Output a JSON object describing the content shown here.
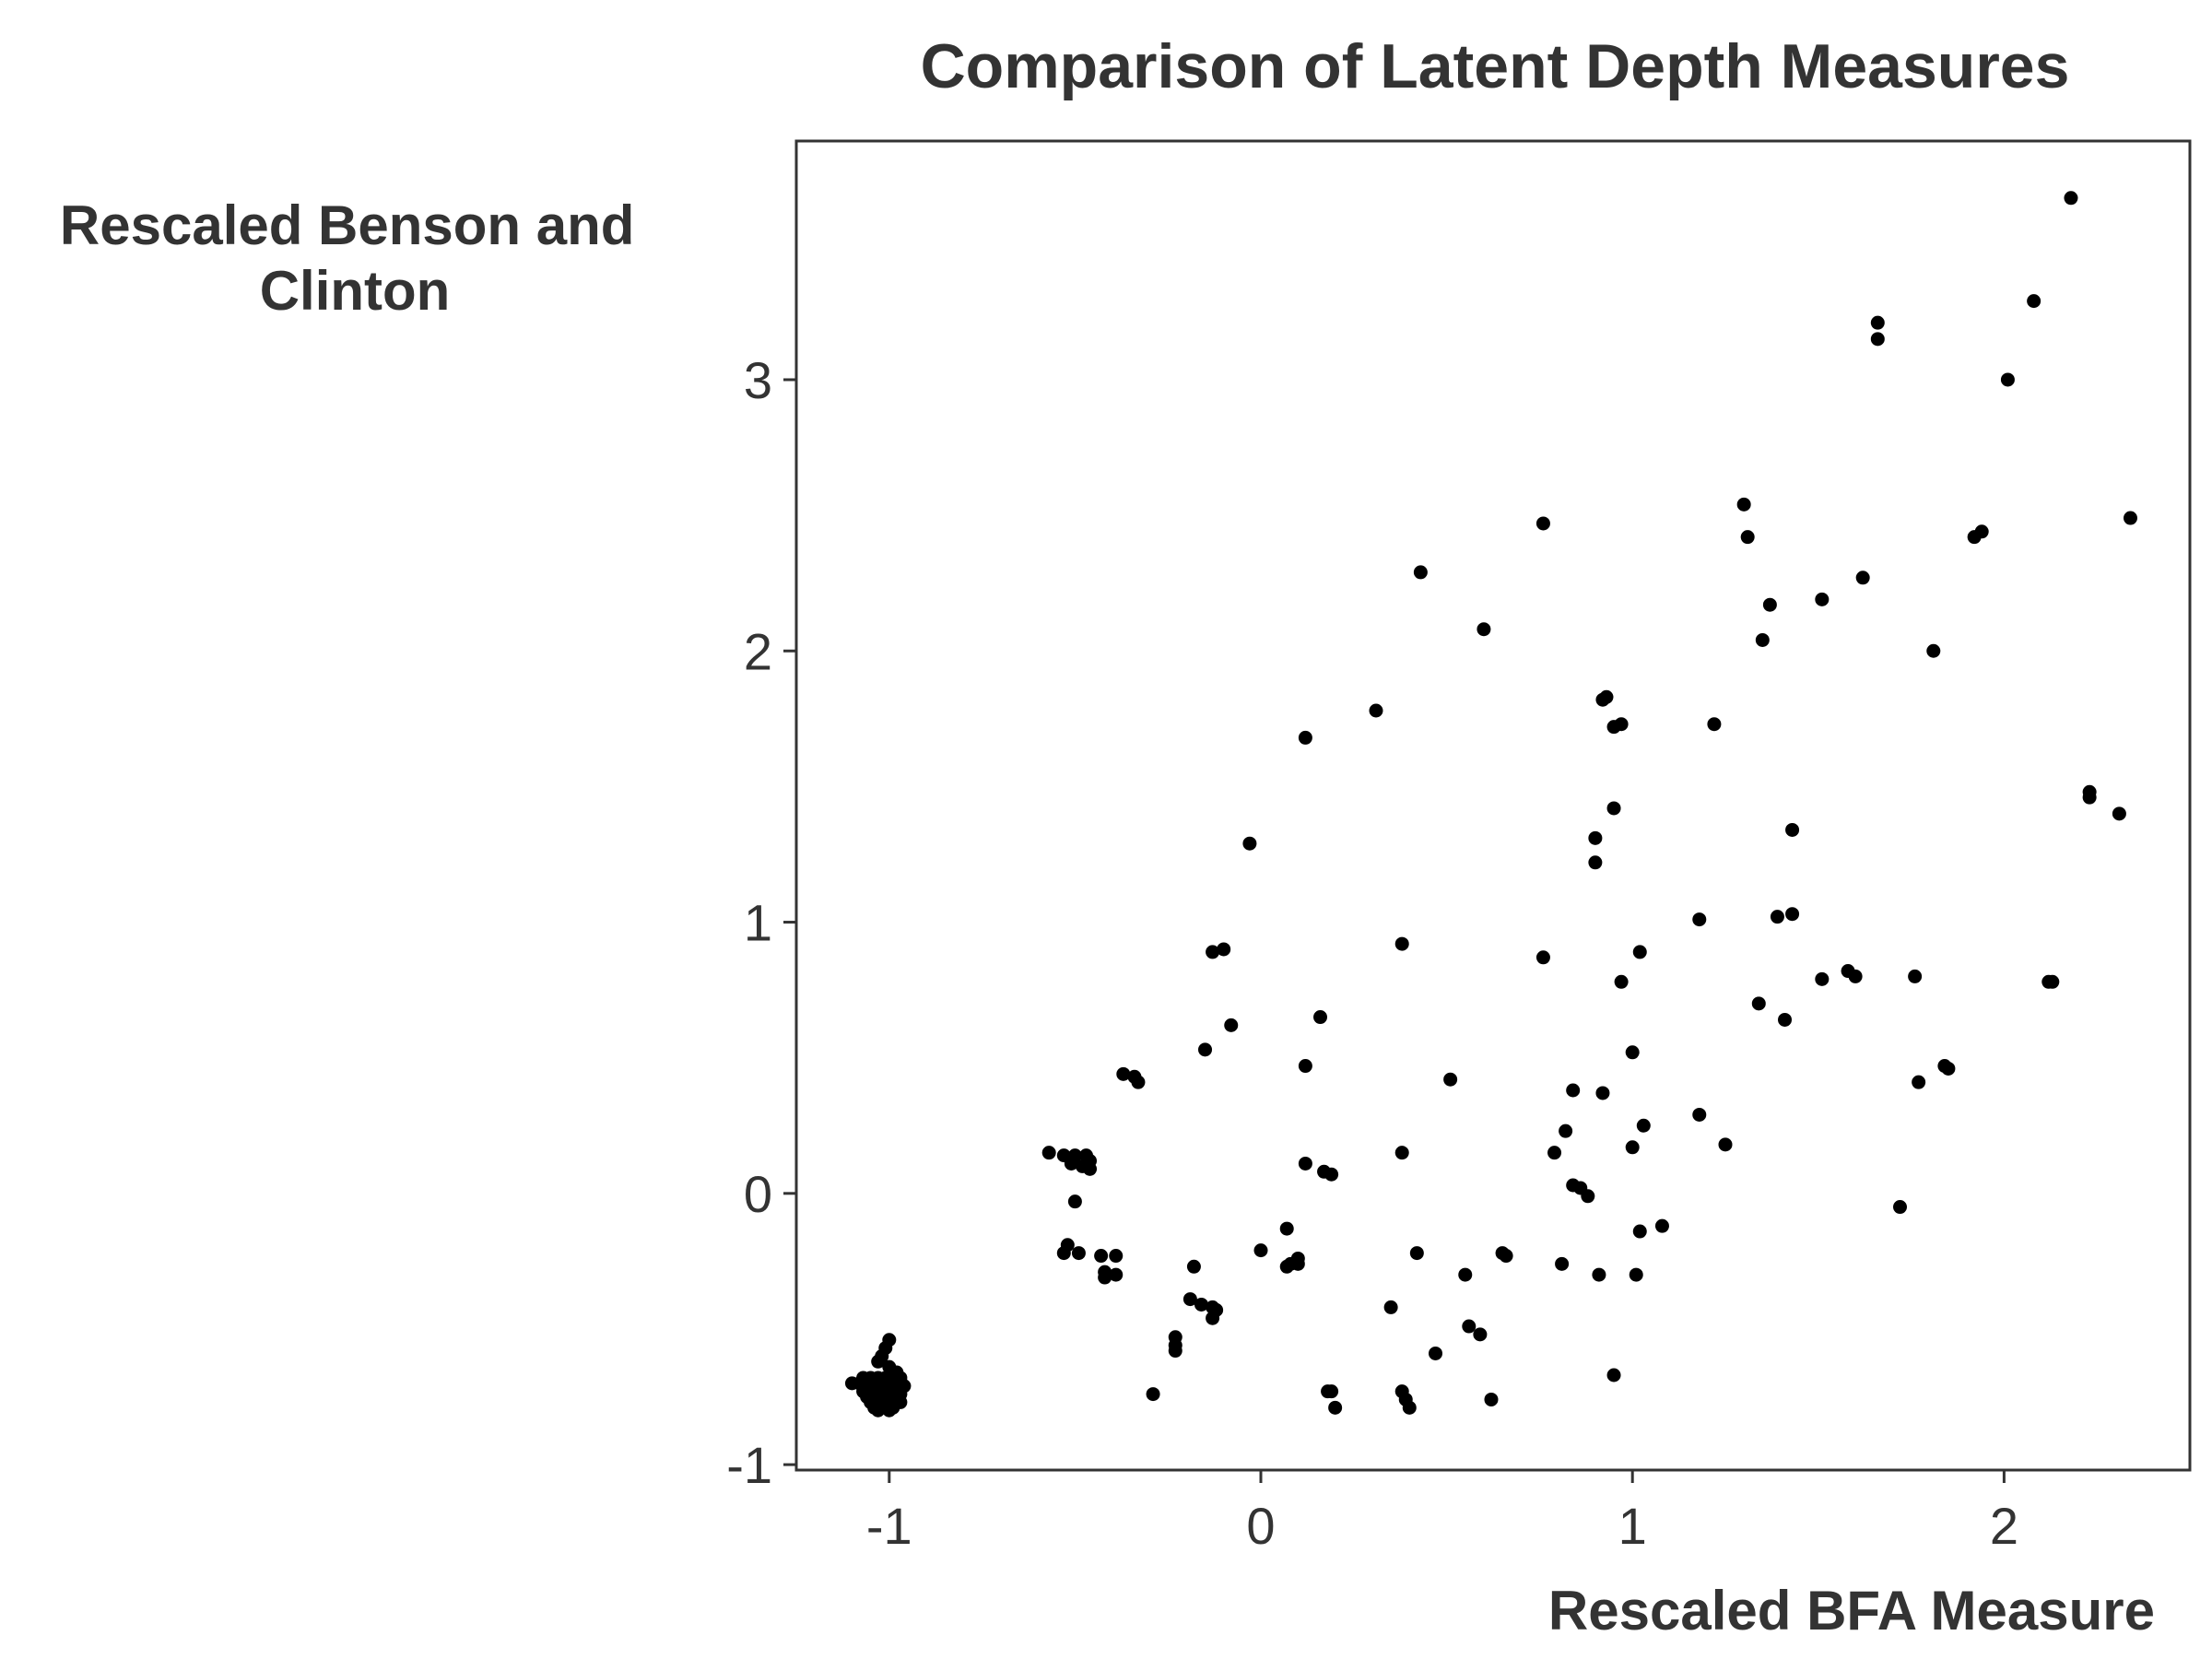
{
  "chart_data": {
    "type": "scatter",
    "title": "Comparison of Latent Depth Measures",
    "xlabel": "Rescaled BFA Measure",
    "ylabel_lines": [
      "Rescaled Benson and",
      "Clinton"
    ],
    "xlim": [
      -1.25,
      2.5
    ],
    "ylim": [
      -1.02,
      3.88
    ],
    "xticks": [
      -1,
      0,
      1,
      2
    ],
    "yticks": [
      -1,
      0,
      1,
      2,
      3
    ],
    "grid": false,
    "point_color": "#000000",
    "series": [
      {
        "points": [
          [
            2.18,
            3.67
          ],
          [
            2.08,
            3.29
          ],
          [
            1.66,
            3.21
          ],
          [
            1.66,
            3.15
          ],
          [
            2.01,
            3.0
          ],
          [
            1.3,
            2.54
          ],
          [
            1.31,
            2.42
          ],
          [
            2.34,
            2.49
          ],
          [
            1.92,
            2.42
          ],
          [
            1.94,
            2.44
          ],
          [
            0.76,
            2.47
          ],
          [
            0.43,
            2.29
          ],
          [
            1.62,
            2.27
          ],
          [
            1.51,
            2.19
          ],
          [
            1.37,
            2.17
          ],
          [
            0.6,
            2.08
          ],
          [
            1.35,
            2.04
          ],
          [
            1.81,
            2.0
          ],
          [
            0.93,
            1.83
          ],
          [
            0.92,
            1.82
          ],
          [
            0.31,
            1.78
          ],
          [
            0.97,
            1.73
          ],
          [
            0.95,
            1.72
          ],
          [
            1.22,
            1.73
          ],
          [
            0.12,
            1.68
          ],
          [
            2.23,
            1.48
          ],
          [
            2.23,
            1.46
          ],
          [
            2.31,
            1.4
          ],
          [
            0.95,
            1.42
          ],
          [
            1.43,
            1.34
          ],
          [
            0.9,
            1.31
          ],
          [
            -0.03,
            1.29
          ],
          [
            0.9,
            1.22
          ],
          [
            1.43,
            1.03
          ],
          [
            1.39,
            1.02
          ],
          [
            1.18,
            1.01
          ],
          [
            0.38,
            0.92
          ],
          [
            1.02,
            0.89
          ],
          [
            -0.1,
            0.9
          ],
          [
            -0.13,
            0.89
          ],
          [
            0.76,
            0.87
          ],
          [
            1.58,
            0.82
          ],
          [
            1.6,
            0.8
          ],
          [
            1.51,
            0.79
          ],
          [
            1.76,
            0.8
          ],
          [
            2.12,
            0.78
          ],
          [
            2.13,
            0.78
          ],
          [
            0.97,
            0.78
          ],
          [
            1.34,
            0.7
          ],
          [
            0.16,
            0.65
          ],
          [
            1.41,
            0.64
          ],
          [
            -0.08,
            0.62
          ],
          [
            -0.15,
            0.53
          ],
          [
            1.0,
            0.52
          ],
          [
            1.84,
            0.47
          ],
          [
            1.85,
            0.46
          ],
          [
            0.12,
            0.47
          ],
          [
            -0.37,
            0.44
          ],
          [
            -0.34,
            0.43
          ],
          [
            -0.33,
            0.41
          ],
          [
            1.77,
            0.41
          ],
          [
            0.51,
            0.42
          ],
          [
            0.84,
            0.38
          ],
          [
            0.92,
            0.37
          ],
          [
            1.18,
            0.29
          ],
          [
            1.03,
            0.25
          ],
          [
            0.82,
            0.23
          ],
          [
            1.25,
            0.18
          ],
          [
            1.0,
            0.17
          ],
          [
            0.79,
            0.15
          ],
          [
            0.38,
            0.15
          ],
          [
            -0.57,
            0.15
          ],
          [
            -0.53,
            0.14
          ],
          [
            -0.5,
            0.14
          ],
          [
            -0.47,
            0.14
          ],
          [
            -0.46,
            0.12
          ],
          [
            -0.51,
            0.11
          ],
          [
            -0.48,
            0.1
          ],
          [
            -0.46,
            0.09
          ],
          [
            0.12,
            0.11
          ],
          [
            0.17,
            0.08
          ],
          [
            0.19,
            0.07
          ],
          [
            0.84,
            0.03
          ],
          [
            0.86,
            0.02
          ],
          [
            0.88,
            -0.01
          ],
          [
            -0.5,
            -0.03
          ],
          [
            1.72,
            -0.05
          ],
          [
            1.08,
            -0.12
          ],
          [
            1.02,
            -0.14
          ],
          [
            0.07,
            -0.13
          ],
          [
            -0.52,
            -0.19
          ],
          [
            -0.53,
            -0.22
          ],
          [
            -0.49,
            -0.22
          ],
          [
            -0.43,
            -0.23
          ],
          [
            -0.39,
            -0.23
          ],
          [
            0.0,
            -0.21
          ],
          [
            0.42,
            -0.22
          ],
          [
            0.65,
            -0.22
          ],
          [
            0.66,
            -0.23
          ],
          [
            0.1,
            -0.24
          ],
          [
            0.08,
            -0.26
          ],
          [
            0.1,
            -0.26
          ],
          [
            0.07,
            -0.27
          ],
          [
            -0.18,
            -0.27
          ],
          [
            0.81,
            -0.26
          ],
          [
            -0.42,
            -0.29
          ],
          [
            -0.39,
            -0.3
          ],
          [
            -0.42,
            -0.31
          ],
          [
            0.55,
            -0.3
          ],
          [
            0.91,
            -0.3
          ],
          [
            1.01,
            -0.3
          ],
          [
            -0.19,
            -0.39
          ],
          [
            -0.16,
            -0.41
          ],
          [
            -0.13,
            -0.42
          ],
          [
            -0.12,
            -0.43
          ],
          [
            0.35,
            -0.42
          ],
          [
            -0.13,
            -0.46
          ],
          [
            0.56,
            -0.49
          ],
          [
            0.59,
            -0.52
          ],
          [
            -0.23,
            -0.53
          ],
          [
            -0.23,
            -0.56
          ],
          [
            -0.23,
            -0.58
          ],
          [
            0.47,
            -0.59
          ],
          [
            0.95,
            -0.67
          ],
          [
            -0.29,
            -0.74
          ],
          [
            0.18,
            -0.73
          ],
          [
            0.19,
            -0.73
          ],
          [
            0.38,
            -0.73
          ],
          [
            0.39,
            -0.76
          ],
          [
            0.62,
            -0.76
          ],
          [
            0.2,
            -0.79
          ],
          [
            0.4,
            -0.79
          ],
          [
            -1.0,
            -0.54
          ],
          [
            -1.01,
            -0.57
          ],
          [
            -1.02,
            -0.6
          ],
          [
            -1.03,
            -0.62
          ],
          [
            -1.0,
            -0.64
          ],
          [
            -0.98,
            -0.66
          ],
          [
            -1.07,
            -0.68
          ],
          [
            -1.05,
            -0.68
          ],
          [
            -1.03,
            -0.68
          ],
          [
            -1.01,
            -0.68
          ],
          [
            -0.99,
            -0.67
          ],
          [
            -0.97,
            -0.68
          ],
          [
            -1.1,
            -0.7
          ],
          [
            -1.08,
            -0.7
          ],
          [
            -1.06,
            -0.71
          ],
          [
            -1.04,
            -0.71
          ],
          [
            -1.02,
            -0.71
          ],
          [
            -1.0,
            -0.71
          ],
          [
            -0.98,
            -0.71
          ],
          [
            -0.96,
            -0.71
          ],
          [
            -1.07,
            -0.73
          ],
          [
            -1.05,
            -0.73
          ],
          [
            -1.03,
            -0.73
          ],
          [
            -1.01,
            -0.73
          ],
          [
            -0.99,
            -0.73
          ],
          [
            -0.97,
            -0.74
          ],
          [
            -1.06,
            -0.75
          ],
          [
            -1.04,
            -0.75
          ],
          [
            -1.02,
            -0.75
          ],
          [
            -1.0,
            -0.75
          ],
          [
            -0.98,
            -0.75
          ],
          [
            -1.05,
            -0.77
          ],
          [
            -1.03,
            -0.77
          ],
          [
            -1.0,
            -0.77
          ],
          [
            -0.97,
            -0.77
          ],
          [
            -1.04,
            -0.79
          ],
          [
            -1.01,
            -0.79
          ],
          [
            -0.99,
            -0.79
          ],
          [
            -1.03,
            -0.8
          ],
          [
            -1.0,
            -0.8
          ]
        ]
      }
    ]
  }
}
